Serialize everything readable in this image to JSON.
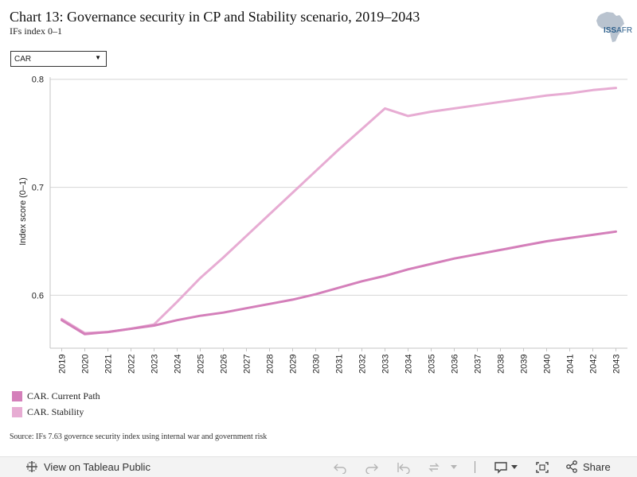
{
  "header": {
    "title": "Chart 13: Governance security in CP and Stability scenario, 2019–2043",
    "subtitle": "IFs index 0–1"
  },
  "logo": {
    "iss": "ISS",
    "afr": "AFR"
  },
  "filter": {
    "selected": "CAR"
  },
  "chart_data": {
    "type": "line",
    "title": "Chart 13: Governance security in CP and Stability scenario, 2019–2043",
    "subtitle": "IFs index 0–1",
    "xlabel": "",
    "ylabel": "Index score (0–1)",
    "ylim": [
      0.551,
      0.802
    ],
    "yticks": [
      0.6,
      0.7,
      0.8
    ],
    "ytick_labels": [
      "0.6",
      "0.7",
      "0.8"
    ],
    "grid": true,
    "legend_position": "bottom-left",
    "x": [
      "2019",
      "2020",
      "2021",
      "2022",
      "2023",
      "2024",
      "2025",
      "2026",
      "2027",
      "2028",
      "2029",
      "2030",
      "2031",
      "2032",
      "2033",
      "2034",
      "2035",
      "2036",
      "2037",
      "2038",
      "2039",
      "2040",
      "2041",
      "2042",
      "2043"
    ],
    "series": [
      {
        "name": "CAR. Current Path",
        "color": "#d47fba",
        "values": [
          0.577,
          0.564,
          0.566,
          0.569,
          0.572,
          0.577,
          0.581,
          0.584,
          0.588,
          0.592,
          0.596,
          0.601,
          0.607,
          0.613,
          0.618,
          0.624,
          0.629,
          0.634,
          0.638,
          0.642,
          0.646,
          0.65,
          0.653,
          0.656,
          0.659
        ]
      },
      {
        "name": "CAR. Stability",
        "color": "#e7acd3",
        "values": [
          0.578,
          0.565,
          0.566,
          0.569,
          0.573,
          0.594,
          0.616,
          0.635,
          0.655,
          0.675,
          0.695,
          0.715,
          0.735,
          0.754,
          0.773,
          0.766,
          0.77,
          0.773,
          0.776,
          0.779,
          0.782,
          0.785,
          0.787,
          0.79,
          0.792
        ]
      }
    ]
  },
  "legend": {
    "items": [
      {
        "label": "CAR. Current Path",
        "color": "#d47fba"
      },
      {
        "label": "CAR. Stability",
        "color": "#e7acd3"
      }
    ]
  },
  "source": "Source: IFs 7.63 governce security index using internal war and government risk",
  "toolbar": {
    "view_label": "View on Tableau Public",
    "share_label": "Share"
  }
}
